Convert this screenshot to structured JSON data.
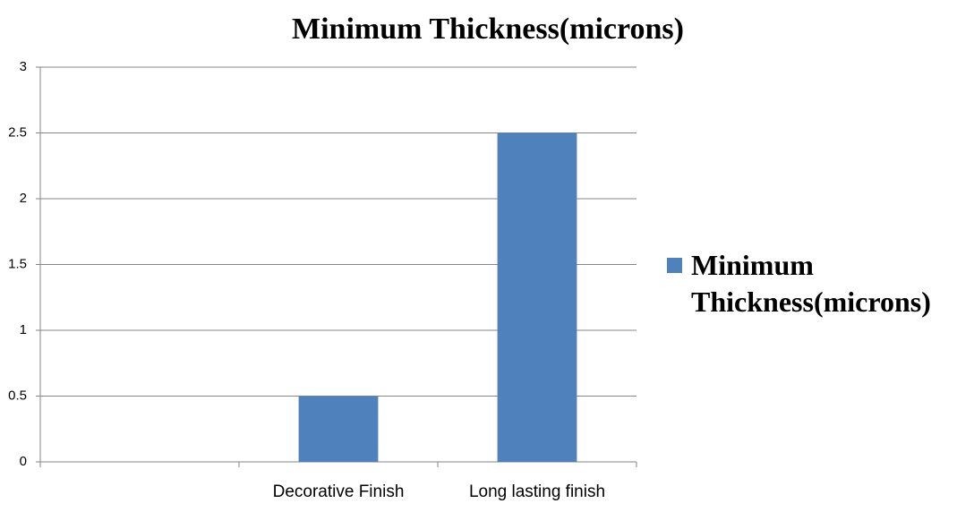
{
  "chart_data": {
    "type": "bar",
    "title": "Minimum Thickness(microns)",
    "categories": [
      null,
      "Decorative Finish",
      "Long lasting finish"
    ],
    "series": [
      {
        "name": "Minimum Thickness(microns)",
        "color": "#4f81bd",
        "values": [
          null,
          0.5,
          2.5
        ]
      }
    ],
    "ylim": [
      0,
      3
    ],
    "yticks": [
      0,
      0.5,
      1,
      1.5,
      2,
      2.5,
      3
    ],
    "grid": true,
    "legend": "right"
  }
}
